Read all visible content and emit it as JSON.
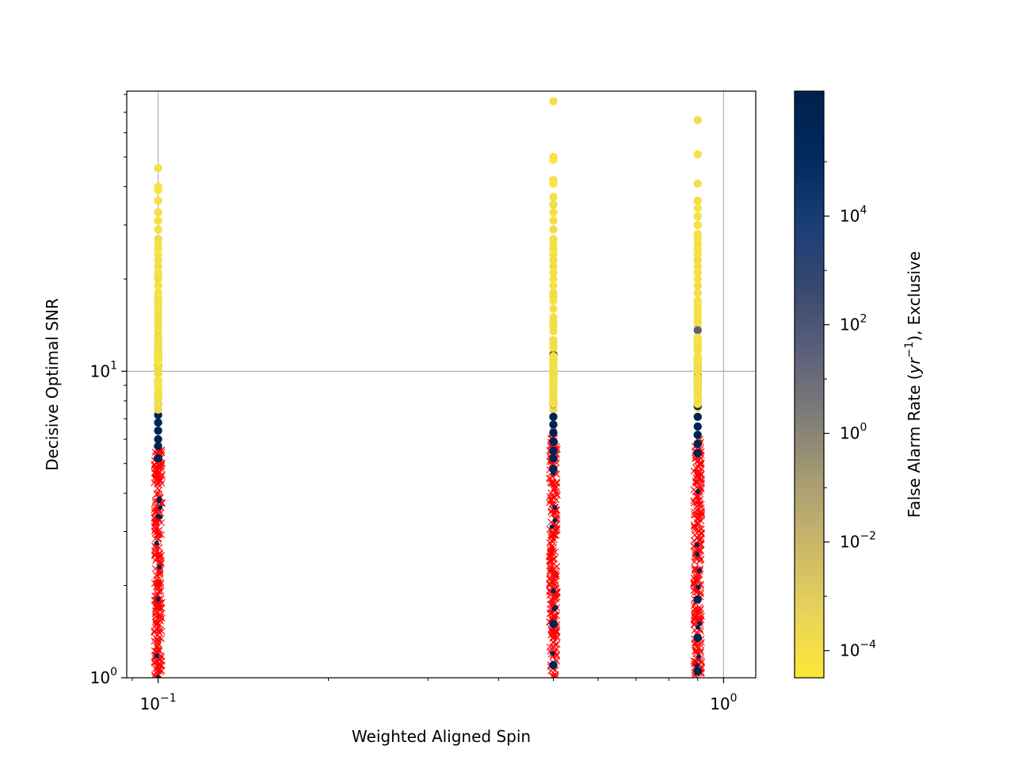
{
  "chart_data": {
    "type": "scatter",
    "title": "",
    "xlabel": "Weighted Aligned Spin",
    "ylabel": "Decisive Optimal SNR",
    "xscale": "log",
    "yscale": "log",
    "xlim": [
      0.088,
      1.14
    ],
    "ylim": [
      1,
      82
    ],
    "grid": true,
    "x_ticks": [
      {
        "value": 0.1,
        "base": "10",
        "exp": "−1"
      },
      {
        "value": 1.0,
        "base": "10",
        "exp": "0"
      }
    ],
    "y_ticks": [
      {
        "value": 1,
        "base": "10",
        "exp": "0"
      },
      {
        "value": 10,
        "base": "10",
        "exp": "1"
      }
    ],
    "colorbar": {
      "label_prefix": "False Alarm Rate (",
      "label_var": "yr",
      "label_sup": "−1",
      "label_suffix": "), Exclusive",
      "scale": "log",
      "range_log10": [
        -4.5,
        6.3
      ],
      "colormap": [
        "#fde837",
        "#e8d25a",
        "#cbb868",
        "#a99d73",
        "#7f7d78",
        "#5b607a",
        "#374870",
        "#1a3d78",
        "#002a5e",
        "#00204d"
      ],
      "ticks": [
        {
          "value": -4,
          "base": "10",
          "exp": "−4"
        },
        {
          "value": -2,
          "base": "10",
          "exp": "−2"
        },
        {
          "value": 0,
          "base": "10",
          "exp": "0"
        },
        {
          "value": 2,
          "base": "10",
          "exp": "2"
        },
        {
          "value": 4,
          "base": "10",
          "exp": "4"
        }
      ]
    },
    "missed_marker": {
      "marker": "x",
      "color": "#ff0000"
    },
    "found_groups": [
      {
        "x": 0.1,
        "snr": [
          46,
          40,
          39,
          36,
          33,
          31,
          29,
          27,
          26,
          25,
          24,
          23,
          22,
          21,
          20.5,
          20,
          19,
          18,
          17.5,
          17,
          16.5,
          16,
          15.5,
          15,
          14.5,
          14,
          13.5,
          13,
          12.5
        ],
        "far": [
          -4.1,
          -4,
          -4.2,
          -4,
          -3.9,
          -4.1,
          -4,
          -3.8,
          -4,
          -4.1,
          -4.2,
          -4,
          -3.9,
          -4,
          -4.1,
          -3.8,
          -4,
          -4,
          -4.2,
          -3.9,
          -4,
          -4.1,
          -4,
          -3.8,
          -4,
          -3.9,
          -4.1,
          -3.5,
          -3
        ]
      },
      {
        "x": 0.1,
        "snr": [
          12,
          11.5,
          11,
          10.5,
          9.3,
          8.2,
          7.8,
          7.2,
          6.8,
          6.4,
          6,
          5.7,
          5.2
        ],
        "far": [
          3,
          5.5,
          5.8,
          6,
          6,
          5.9,
          6.1,
          6,
          5.8,
          6,
          6.1,
          5.9,
          6
        ]
      },
      {
        "x": 0.1,
        "snr": [
          10.2,
          9.8,
          8.8,
          8.5,
          7.5
        ],
        "far": [
          -3.5,
          -3.8,
          -4,
          -3.9,
          -3.7
        ]
      },
      {
        "x": 0.5,
        "snr": [
          76,
          50,
          49,
          42,
          41,
          37,
          35,
          33,
          31,
          29,
          27,
          26,
          25,
          24,
          23,
          22,
          21,
          20,
          19,
          18,
          17.5,
          17,
          16,
          15,
          14.5,
          14,
          13.5
        ],
        "far": [
          -4,
          -4.1,
          -4.3,
          -4,
          -4.2,
          -4,
          -3.9,
          -4.1,
          -4,
          -3.8,
          -4,
          -4,
          -3.9,
          -4.1,
          -4,
          -3.8,
          -4,
          -4.1,
          -4.2,
          -4,
          -3.9,
          -4,
          -4.1,
          -4,
          -3.9,
          -4,
          -4
        ]
      },
      {
        "x": 0.5,
        "snr": [
          12.5,
          12,
          11.5,
          11,
          10.8,
          10.5,
          10.2,
          9.8,
          9.5,
          9.2,
          9,
          8.8,
          8.6,
          8.3,
          8,
          7.5
        ],
        "far": [
          -4,
          -3.9,
          -4.1,
          -4,
          -3.8,
          -4,
          -4.1,
          -4,
          -3.9,
          -4,
          -4.2,
          -4,
          -3.8,
          -4,
          -4,
          -3.7
        ]
      },
      {
        "x": 0.5,
        "snr": [
          11.3,
          10.9,
          9.8,
          9.6,
          7.8,
          7.1,
          6.7,
          6.3,
          5.9,
          5.5,
          5.2,
          4.8
        ],
        "far": [
          6,
          6.1,
          6.2,
          6,
          1,
          6,
          5.9,
          6,
          6.1,
          5.8,
          6,
          6
        ]
      },
      {
        "x": 0.5,
        "snr": [
          1.5,
          1.1
        ],
        "far": [
          6,
          6
        ]
      },
      {
        "x": 0.9,
        "snr": [
          66,
          51,
          41,
          36,
          34,
          32,
          30,
          28,
          27,
          26,
          25,
          24,
          23,
          22,
          21,
          20,
          19,
          18,
          17,
          16.5,
          16,
          15.5,
          15,
          14.5,
          14
        ],
        "far": [
          -4,
          -4.1,
          -4,
          -3.9,
          -4.2,
          -4,
          -4.1,
          -3.9,
          -4,
          -4,
          -4.2,
          -4,
          -3.8,
          -4,
          -4.1,
          -4,
          -3.9,
          -4,
          -4,
          -4.1,
          -3.9,
          -4,
          -4,
          -3.8,
          -4
        ]
      },
      {
        "x": 0.9,
        "snr": [
          12.5,
          13.6,
          11.2,
          10.8,
          10.4,
          10,
          9.7,
          9.4,
          9.1,
          8.8,
          8.4,
          8,
          7.6
        ],
        "far": [
          -4,
          1.5,
          -3.9,
          -4,
          -4.1,
          -4,
          -3.9,
          -4,
          -4.1,
          -4,
          -3.8,
          -4,
          -4
        ]
      },
      {
        "x": 0.9,
        "snr": [
          11,
          10.5,
          9.6,
          9.2,
          8.7,
          8.2,
          7.7,
          7.1,
          6.6,
          6.2,
          5.8,
          5.4,
          1.8,
          1.35,
          1.05
        ],
        "far": [
          5.8,
          6,
          6.1,
          6,
          5.9,
          6,
          6.1,
          6,
          5.8,
          6,
          6.1,
          6,
          6,
          6,
          6
        ]
      }
    ],
    "missed_groups": [
      {
        "x": 0.1,
        "snr_range": [
          1,
          5.6
        ],
        "extra": [
          5.5
        ]
      },
      {
        "x": 0.5,
        "snr_range": [
          1,
          6.2
        ],
        "extra": [
          12.6,
          6.6,
          6.1
        ]
      },
      {
        "x": 0.9,
        "snr_range": [
          1,
          6.0
        ],
        "extra": []
      }
    ]
  }
}
